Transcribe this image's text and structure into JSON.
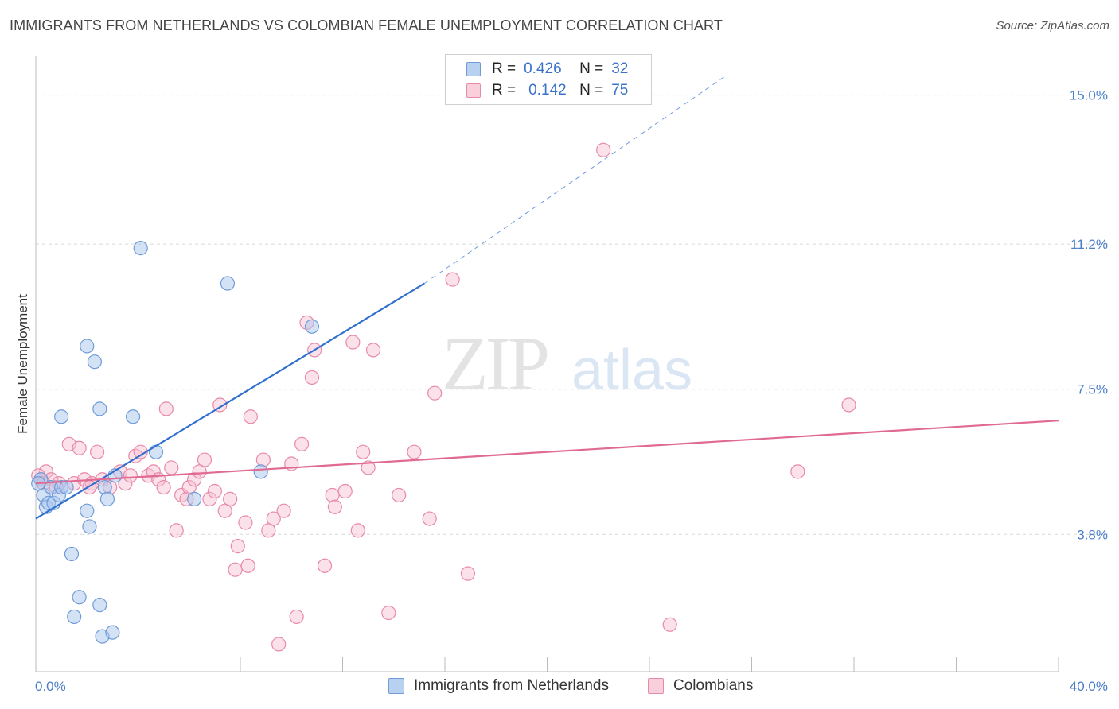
{
  "title": "IMMIGRANTS FROM NETHERLANDS VS COLOMBIAN FEMALE UNEMPLOYMENT CORRELATION CHART",
  "source": "Source: ZipAtlas.com",
  "watermark": {
    "zip": "ZIP",
    "atlas": "atlas"
  },
  "legend": {
    "rows": [
      {
        "r_label": "R =",
        "r_value": "0.426",
        "n_label": "N =",
        "n_value": "32"
      },
      {
        "r_label": "R =",
        "r_value": "0.142",
        "n_label": "N =",
        "n_value": "75"
      }
    ]
  },
  "bottom_legend": {
    "series1": "Immigrants from Netherlands",
    "series2": "Colombians"
  },
  "colors": {
    "blue_fill": "#a9c6ee",
    "blue_stroke": "#6f9bd8",
    "blue_line": "#2f6fcf",
    "pink_fill": "#f6bfd0",
    "pink_stroke": "#e88aa8",
    "pink_line": "#e06a92",
    "tick_text": "#4a7ec8",
    "grid": "#d8d8d8"
  },
  "chart_data": {
    "type": "scatter",
    "title": "IMMIGRANTS FROM NETHERLANDS VS COLOMBIAN FEMALE UNEMPLOYMENT CORRELATION CHART",
    "xlabel": "",
    "ylabel": "Female Unemployment",
    "xlim": [
      0,
      40
    ],
    "ylim": [
      0.3,
      15.5
    ],
    "x_tick_labels": [
      "0.0%",
      "40.0%"
    ],
    "y_ticks": [
      3.8,
      7.5,
      11.2,
      15.0
    ],
    "y_tick_labels": [
      "3.8%",
      "7.5%",
      "11.2%",
      "15.0%"
    ],
    "grid": true,
    "legend_position": "top-center",
    "series": [
      {
        "name": "Immigrants from Netherlands",
        "color": "blue",
        "R": 0.426,
        "N": 32,
        "trend": {
          "x": [
            0,
            15.2
          ],
          "y": [
            4.2,
            10.2
          ],
          "dashed_to": [
            27.0,
            15.5
          ]
        },
        "points": [
          [
            0.2,
            5.2
          ],
          [
            0.3,
            4.8
          ],
          [
            0.4,
            4.5
          ],
          [
            0.5,
            4.6
          ],
          [
            0.6,
            5.0
          ],
          [
            0.7,
            4.6
          ],
          [
            0.9,
            4.8
          ],
          [
            1.0,
            5.0
          ],
          [
            1.2,
            5.0
          ],
          [
            1.0,
            6.8
          ],
          [
            1.4,
            3.3
          ],
          [
            1.5,
            1.7
          ],
          [
            1.7,
            2.2
          ],
          [
            2.0,
            8.6
          ],
          [
            2.0,
            4.4
          ],
          [
            2.1,
            4.0
          ],
          [
            2.3,
            8.2
          ],
          [
            2.5,
            2.0
          ],
          [
            2.5,
            7.0
          ],
          [
            2.6,
            1.2
          ],
          [
            2.7,
            5.0
          ],
          [
            2.8,
            4.7
          ],
          [
            3.0,
            1.3
          ],
          [
            3.1,
            5.3
          ],
          [
            3.8,
            6.8
          ],
          [
            4.1,
            11.1
          ],
          [
            4.7,
            5.9
          ],
          [
            6.2,
            4.7
          ],
          [
            7.5,
            10.2
          ],
          [
            8.8,
            5.4
          ],
          [
            10.8,
            9.1
          ],
          [
            0.1,
            5.1
          ]
        ]
      },
      {
        "name": "Colombians",
        "color": "pink",
        "R": 0.142,
        "N": 75,
        "trend": {
          "x": [
            0,
            40
          ],
          "y": [
            5.1,
            6.7
          ]
        },
        "points": [
          [
            0.2,
            5.2
          ],
          [
            0.4,
            5.4
          ],
          [
            0.6,
            5.2
          ],
          [
            0.9,
            5.1
          ],
          [
            1.3,
            6.1
          ],
          [
            1.5,
            5.1
          ],
          [
            1.7,
            6.0
          ],
          [
            1.9,
            5.2
          ],
          [
            2.2,
            5.1
          ],
          [
            2.4,
            5.9
          ],
          [
            2.6,
            5.2
          ],
          [
            2.9,
            5.0
          ],
          [
            3.3,
            5.4
          ],
          [
            3.5,
            5.1
          ],
          [
            3.7,
            5.3
          ],
          [
            3.9,
            5.8
          ],
          [
            4.1,
            5.9
          ],
          [
            4.4,
            5.3
          ],
          [
            4.6,
            5.4
          ],
          [
            4.8,
            5.2
          ],
          [
            5.0,
            5.0
          ],
          [
            5.1,
            7.0
          ],
          [
            5.3,
            5.5
          ],
          [
            5.5,
            3.9
          ],
          [
            5.7,
            4.8
          ],
          [
            5.9,
            4.7
          ],
          [
            6.0,
            5.0
          ],
          [
            6.2,
            5.2
          ],
          [
            6.4,
            5.4
          ],
          [
            6.6,
            5.7
          ],
          [
            6.8,
            4.7
          ],
          [
            7.0,
            4.9
          ],
          [
            7.2,
            7.1
          ],
          [
            7.4,
            4.4
          ],
          [
            7.6,
            4.7
          ],
          [
            7.8,
            2.9
          ],
          [
            7.9,
            3.5
          ],
          [
            8.2,
            4.1
          ],
          [
            8.3,
            3.0
          ],
          [
            8.4,
            6.8
          ],
          [
            8.9,
            5.7
          ],
          [
            9.1,
            3.9
          ],
          [
            9.3,
            4.2
          ],
          [
            9.5,
            1.0
          ],
          [
            9.7,
            4.4
          ],
          [
            10.0,
            5.6
          ],
          [
            10.2,
            1.7
          ],
          [
            10.4,
            6.1
          ],
          [
            10.6,
            9.2
          ],
          [
            10.8,
            7.8
          ],
          [
            10.9,
            8.5
          ],
          [
            11.3,
            3.0
          ],
          [
            11.6,
            4.8
          ],
          [
            11.7,
            4.5
          ],
          [
            12.1,
            4.9
          ],
          [
            12.4,
            8.7
          ],
          [
            12.6,
            3.9
          ],
          [
            12.8,
            5.9
          ],
          [
            13.0,
            5.5
          ],
          [
            13.2,
            8.5
          ],
          [
            13.8,
            1.8
          ],
          [
            14.2,
            4.8
          ],
          [
            14.8,
            5.9
          ],
          [
            15.4,
            4.2
          ],
          [
            15.6,
            7.4
          ],
          [
            16.3,
            10.3
          ],
          [
            16.9,
            2.8
          ],
          [
            22.2,
            13.6
          ],
          [
            24.8,
            1.5
          ],
          [
            29.8,
            5.4
          ],
          [
            31.8,
            7.1
          ],
          [
            0.1,
            5.3
          ],
          [
            0.3,
            5.1
          ],
          [
            0.8,
            5.0
          ],
          [
            2.1,
            5.0
          ]
        ]
      }
    ]
  }
}
